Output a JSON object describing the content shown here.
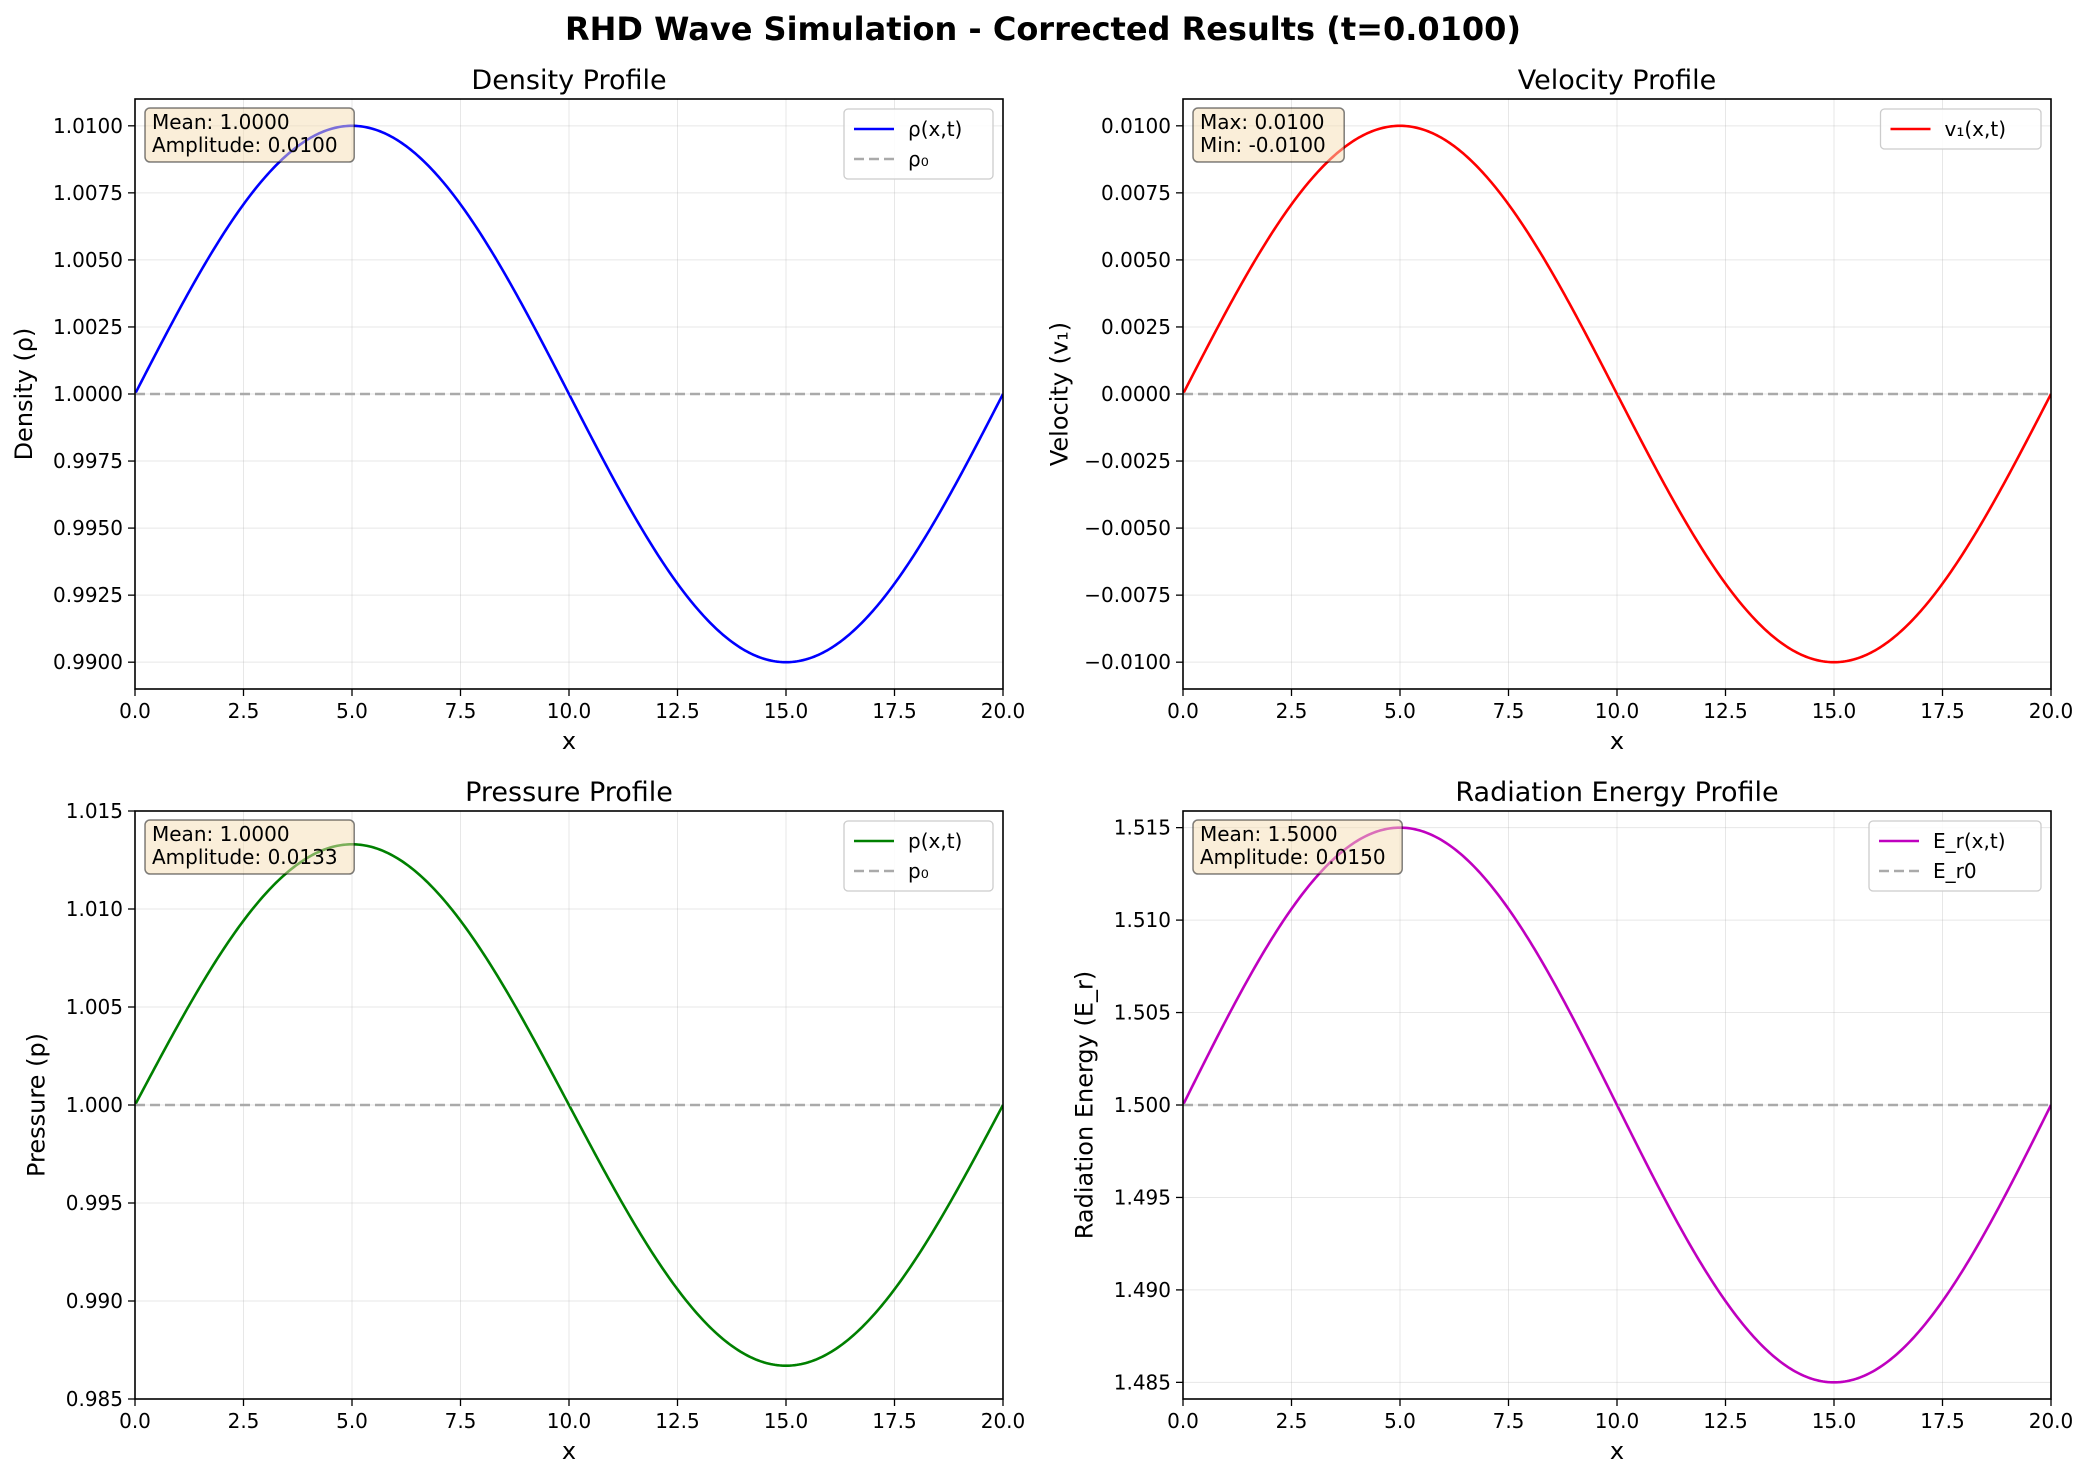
{
  "figure": {
    "title": "RHD Wave Simulation - Corrected Results (t=0.0100)"
  },
  "chart_data": [
    {
      "type": "line",
      "title": "Density Profile",
      "xlabel": "x",
      "ylabel": "Density (ρ)",
      "xlim": [
        0,
        20
      ],
      "ylim": [
        0.989,
        1.011
      ],
      "xticks": [
        0,
        2.5,
        5,
        7.5,
        10,
        12.5,
        15,
        17.5,
        20
      ],
      "xtick_labels": [
        "0.0",
        "2.5",
        "5.0",
        "7.5",
        "10.0",
        "12.5",
        "15.0",
        "17.5",
        "20.0"
      ],
      "yticks": [
        0.99,
        0.9925,
        0.995,
        0.9975,
        1.0,
        1.0025,
        1.005,
        1.0075,
        1.01
      ],
      "ytick_labels": [
        "0.9900",
        "0.9925",
        "0.9950",
        "0.9975",
        "1.0000",
        "1.0025",
        "1.0050",
        "1.0075",
        "1.0100"
      ],
      "grid": true,
      "legend_position": "upper right",
      "stats_box": [
        "Mean: 1.0000",
        "Amplitude: 0.0100"
      ],
      "series": [
        {
          "name": "ρ(x,t)",
          "color": "#0000ff",
          "style": "solid",
          "function": "sine",
          "mean": 1.0,
          "amplitude": 0.01,
          "period": 20
        },
        {
          "name": "ρ₀",
          "color": "#aaaaaa",
          "style": "dashed",
          "function": "constant",
          "value": 1.0
        }
      ]
    },
    {
      "type": "line",
      "title": "Velocity Profile",
      "xlabel": "x",
      "ylabel": "Velocity (v₁)",
      "xlim": [
        0,
        20
      ],
      "ylim": [
        -0.011,
        0.011
      ],
      "xticks": [
        0,
        2.5,
        5,
        7.5,
        10,
        12.5,
        15,
        17.5,
        20
      ],
      "xtick_labels": [
        "0.0",
        "2.5",
        "5.0",
        "7.5",
        "10.0",
        "12.5",
        "15.0",
        "17.5",
        "20.0"
      ],
      "yticks": [
        -0.01,
        -0.0075,
        -0.005,
        -0.0025,
        0,
        0.0025,
        0.005,
        0.0075,
        0.01
      ],
      "ytick_labels": [
        "−0.0100",
        "−0.0075",
        "−0.0050",
        "−0.0025",
        "0.0000",
        "0.0025",
        "0.0050",
        "0.0075",
        "0.0100"
      ],
      "grid": true,
      "legend_position": "upper right",
      "stats_box": [
        "Max: 0.0100",
        "Min: -0.0100"
      ],
      "series": [
        {
          "name": "v₁(x,t)",
          "color": "#ff0000",
          "style": "solid",
          "function": "sine",
          "mean": 0.0,
          "amplitude": 0.01,
          "period": 20
        }
      ],
      "reference_line": {
        "color": "#aaaaaa",
        "style": "dashed",
        "value": 0.0
      }
    },
    {
      "type": "line",
      "title": "Pressure Profile",
      "xlabel": "x",
      "ylabel": "Pressure (p)",
      "xlim": [
        0,
        20
      ],
      "ylim": [
        0.985,
        1.015
      ],
      "xticks": [
        0,
        2.5,
        5,
        7.5,
        10,
        12.5,
        15,
        17.5,
        20
      ],
      "xtick_labels": [
        "0.0",
        "2.5",
        "5.0",
        "7.5",
        "10.0",
        "12.5",
        "15.0",
        "17.5",
        "20.0"
      ],
      "yticks": [
        0.985,
        0.99,
        0.995,
        1.0,
        1.005,
        1.01,
        1.015
      ],
      "ytick_labels": [
        "0.985",
        "0.990",
        "0.995",
        "1.000",
        "1.005",
        "1.010",
        "1.015"
      ],
      "grid": true,
      "legend_position": "upper right",
      "stats_box": [
        "Mean: 1.0000",
        "Amplitude: 0.0133"
      ],
      "series": [
        {
          "name": "p(x,t)",
          "color": "#008000",
          "style": "solid",
          "function": "sine",
          "mean": 1.0,
          "amplitude": 0.0133,
          "period": 20
        },
        {
          "name": "p₀",
          "color": "#aaaaaa",
          "style": "dashed",
          "function": "constant",
          "value": 1.0
        }
      ]
    },
    {
      "type": "line",
      "title": "Radiation Energy Profile",
      "xlabel": "x",
      "ylabel": "Radiation Energy (E_r)",
      "xlim": [
        0,
        20
      ],
      "ylim": [
        1.4841,
        1.5159
      ],
      "xticks": [
        0,
        2.5,
        5,
        7.5,
        10,
        12.5,
        15,
        17.5,
        20
      ],
      "xtick_labels": [
        "0.0",
        "2.5",
        "5.0",
        "7.5",
        "10.0",
        "12.5",
        "15.0",
        "17.5",
        "20.0"
      ],
      "yticks": [
        1.485,
        1.49,
        1.495,
        1.5,
        1.505,
        1.51,
        1.515
      ],
      "ytick_labels": [
        "1.485",
        "1.490",
        "1.495",
        "1.500",
        "1.505",
        "1.510",
        "1.515"
      ],
      "grid": true,
      "legend_position": "upper right",
      "stats_box": [
        "Mean: 1.5000",
        "Amplitude: 0.0150"
      ],
      "series": [
        {
          "name": "E_r(x,t)",
          "color": "#bf00bf",
          "style": "solid",
          "function": "sine",
          "mean": 1.5,
          "amplitude": 0.015,
          "period": 20
        },
        {
          "name": "E_r0",
          "color": "#aaaaaa",
          "style": "dashed",
          "function": "constant",
          "value": 1.5
        }
      ]
    }
  ]
}
